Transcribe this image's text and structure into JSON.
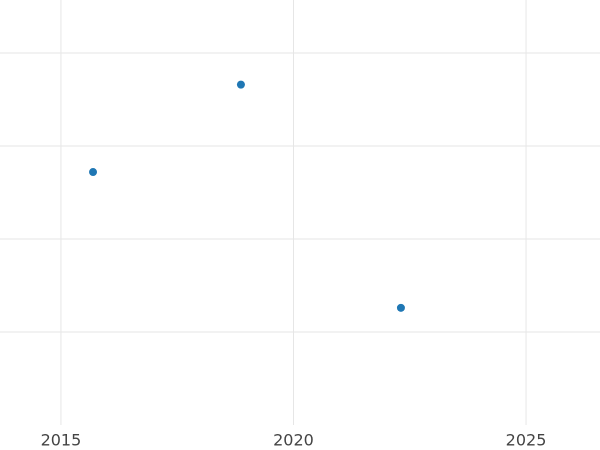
{
  "chart_data": {
    "type": "scatter",
    "x": [
      2015.69,
      2018.87,
      2022.31
    ],
    "series": [
      {
        "color": "#1f77b4",
        "values": [
          2.72,
          3.66,
          1.26
        ]
      }
    ],
    "xlim": [
      2013.69,
      2026.59
    ],
    "xticks": [
      2015,
      2020,
      2025
    ],
    "ylim": [
      0,
      4.57
    ],
    "yticks": [
      1,
      2,
      3,
      4
    ],
    "ytick_labels": false,
    "grid": true
  }
}
